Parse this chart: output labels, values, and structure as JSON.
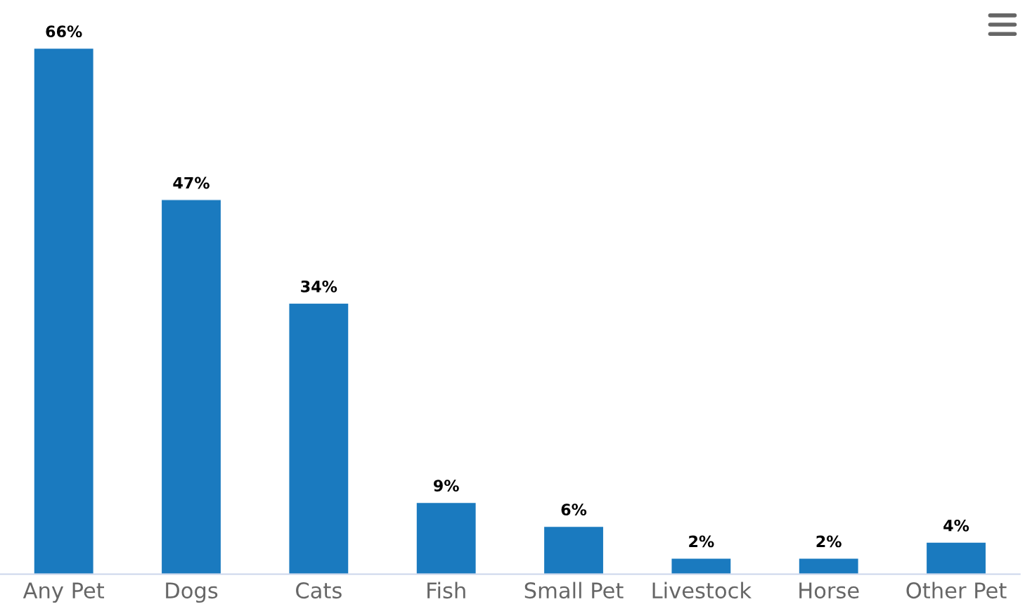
{
  "chart_data": {
    "type": "bar",
    "categories": [
      "Any Pet",
      "Dogs",
      "Cats",
      "Fish",
      "Small Pet",
      "Livestock",
      "Horse",
      "Other Pet"
    ],
    "values": [
      66,
      47,
      34,
      9,
      6,
      2,
      2,
      4
    ],
    "value_labels": [
      "66%",
      "47%",
      "34%",
      "9%",
      "6%",
      "2%",
      "2%",
      "4%"
    ],
    "color": "#1a7abf",
    "grid": false,
    "legend": false
  }
}
